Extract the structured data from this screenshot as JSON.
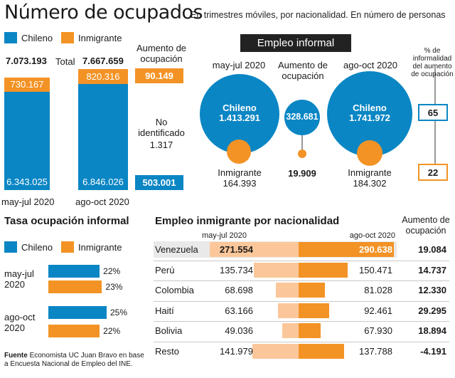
{
  "title": "Número de ocupados",
  "subtitle": "En trimestres móviles, por nacionalidad. En número de personas",
  "legend": {
    "chileno": "Chileno",
    "inmigrante": "Inmigrante"
  },
  "colors": {
    "chileno": "#0a86c4",
    "inmigrante": "#f39325",
    "inmigrante_light": "#fbc79a"
  },
  "panel1": {
    "total_label": "Total",
    "periods": [
      "may-jul 2020",
      "ago-oct 2020"
    ],
    "totals": [
      "7.073.193",
      "7.667.659"
    ],
    "chileno": [
      "6.343.025",
      "6.846.026"
    ],
    "inmigrante": [
      "730.167",
      "820.316"
    ],
    "aumento_label": "Aumento de ocupación",
    "aumento_inmigrante": "90.149",
    "no_identificado_label": "No identificado",
    "no_identificado_value": "1.317",
    "aumento_chileno": "503.001"
  },
  "panel2": {
    "header": "Empleo informal",
    "periods": [
      "may-jul 2020",
      "ago-oct 2020"
    ],
    "aumento_label": "Aumento de ocupación",
    "chileno_label": "Chileno",
    "inmigrante_label": "Inmigrante",
    "chileno_values": [
      "1.413.291",
      "1.741.972"
    ],
    "inmigrante_values": [
      "164.393",
      "184.302"
    ],
    "aumento_chileno": "328.681",
    "aumento_inmigrante": "19.909",
    "pct_label": "% de informalidad del aumento de ocupación",
    "pct_chileno": "65",
    "pct_inmigrante": "22"
  },
  "chart_data": [
    {
      "type": "bar",
      "title": "Número de ocupados",
      "categories": [
        "may-jul 2020",
        "ago-oct 2020"
      ],
      "series": [
        {
          "name": "Chileno",
          "values": [
            6343025,
            6846026
          ]
        },
        {
          "name": "Inmigrante",
          "values": [
            730167,
            820316
          ]
        }
      ],
      "stacked": true
    },
    {
      "type": "bar",
      "title": "Tasa ocupación informal",
      "orientation": "horizontal",
      "categories": [
        "may-jul 2020",
        "ago-oct 2020"
      ],
      "category_labels": [
        [
          "may-jul",
          "2020"
        ],
        [
          "ago-oct",
          "2020"
        ]
      ],
      "series": [
        {
          "name": "Chileno",
          "values": [
            22,
            25
          ],
          "labels": [
            "22%",
            "25%"
          ]
        },
        {
          "name": "Inmigrante",
          "values": [
            23,
            22
          ],
          "labels": [
            "23%",
            "22%"
          ]
        }
      ],
      "xlim": [
        0,
        28
      ]
    },
    {
      "type": "bar",
      "title": "Empleo inmigrante por nacionalidad",
      "orientation": "horizontal",
      "period_labels": [
        "may-jul 2020",
        "ago-oct 2020"
      ],
      "aumento_header": "Aumento de ocupación",
      "categories": [
        "Venezuela",
        "Perú",
        "Colombia",
        "Haití",
        "Bolivia",
        "Resto"
      ],
      "series": [
        {
          "name": "may-jul 2020",
          "values": [
            271554,
            135734,
            68698,
            63166,
            49036,
            141979
          ],
          "labels": [
            "271.554",
            "135.734",
            "68.698",
            "63.166",
            "49.036",
            "141.979"
          ]
        },
        {
          "name": "ago-oct 2020",
          "values": [
            290638,
            150471,
            81028,
            92461,
            67930,
            137788
          ],
          "labels": [
            "290.638",
            "150.471",
            "81.028",
            "92.461",
            "67.930",
            "137.788"
          ]
        }
      ],
      "aumento": [
        "19.084",
        "14.737",
        "12.330",
        "29.295",
        "18.894",
        "-4.191"
      ]
    }
  ],
  "source": {
    "label": "Fuente",
    "text": "Economista UC Juan Bravo en base a Encuesta Nacional de Empleo del INE."
  }
}
